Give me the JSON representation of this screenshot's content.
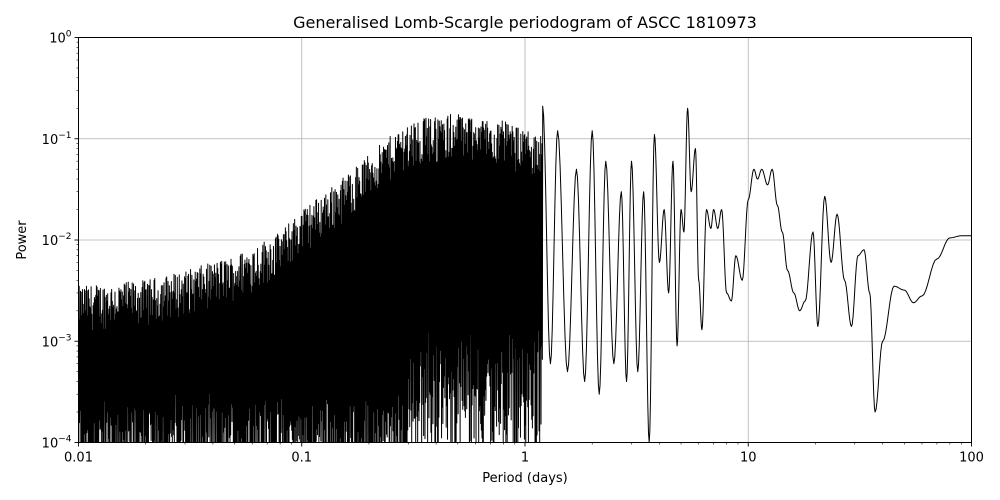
{
  "chart_data": {
    "type": "line",
    "title": "Generalised Lomb-Scargle periodogram of ASCC 1810973",
    "xlabel": "Period (days)",
    "ylabel": "Power",
    "xscale": "log",
    "yscale": "log",
    "xlim": [
      0.01,
      100
    ],
    "ylim": [
      0.0001,
      1
    ],
    "grid": true,
    "x_ticks": [
      {
        "value": 0.01,
        "label": "0.01"
      },
      {
        "value": 0.1,
        "label": "0.1"
      },
      {
        "value": 1,
        "label": "1"
      },
      {
        "value": 10,
        "label": "10"
      },
      {
        "value": 100,
        "label": "100"
      }
    ],
    "y_ticks": [
      {
        "value": 0.0001,
        "base": "10",
        "exp": "−4"
      },
      {
        "value": 0.001,
        "base": "10",
        "exp": "−3"
      },
      {
        "value": 0.01,
        "base": "10",
        "exp": "−2"
      },
      {
        "value": 0.1,
        "base": "10",
        "exp": "−1"
      },
      {
        "value": 1,
        "base": "10",
        "exp": "0"
      }
    ],
    "series": [
      {
        "color": "#000000",
        "envelope": [
          {
            "period": 0.01,
            "power": 0.0035
          },
          {
            "period": 0.02,
            "power": 0.004
          },
          {
            "period": 0.03,
            "power": 0.005
          },
          {
            "period": 0.05,
            "power": 0.007
          },
          {
            "period": 0.08,
            "power": 0.012
          },
          {
            "period": 0.1,
            "power": 0.02
          },
          {
            "period": 0.15,
            "power": 0.04
          },
          {
            "period": 0.2,
            "power": 0.07
          },
          {
            "period": 0.3,
            "power": 0.15
          },
          {
            "period": 0.5,
            "power": 0.18
          },
          {
            "period": 0.8,
            "power": 0.15
          },
          {
            "period": 1.0,
            "power": 0.12
          }
        ],
        "points": [
          [
            1.2,
            0.21
          ],
          [
            1.3,
            0.0006
          ],
          [
            1.4,
            0.12
          ],
          [
            1.55,
            0.0005
          ],
          [
            1.7,
            0.05
          ],
          [
            1.85,
            0.0004
          ],
          [
            2.0,
            0.12
          ],
          [
            2.15,
            0.0003
          ],
          [
            2.3,
            0.06
          ],
          [
            2.5,
            0.0006
          ],
          [
            2.7,
            0.03
          ],
          [
            2.85,
            0.0004
          ],
          [
            3.0,
            0.06
          ],
          [
            3.2,
            0.0005
          ],
          [
            3.4,
            0.03
          ],
          [
            3.6,
            0.0001
          ],
          [
            3.8,
            0.11
          ],
          [
            4.0,
            0.006
          ],
          [
            4.2,
            0.02
          ],
          [
            4.4,
            0.003
          ],
          [
            4.6,
            0.06
          ],
          [
            4.8,
            0.0009
          ],
          [
            5.0,
            0.02
          ],
          [
            5.15,
            0.012
          ],
          [
            5.35,
            0.2
          ],
          [
            5.55,
            0.03
          ],
          [
            5.8,
            0.08
          ],
          [
            6.0,
            0.004
          ],
          [
            6.2,
            0.0013
          ],
          [
            6.5,
            0.02
          ],
          [
            6.8,
            0.013
          ],
          [
            7.0,
            0.02
          ],
          [
            7.3,
            0.013
          ],
          [
            7.6,
            0.02
          ],
          [
            8.0,
            0.003
          ],
          [
            8.4,
            0.0025
          ],
          [
            8.8,
            0.007
          ],
          [
            9.4,
            0.004
          ],
          [
            10.0,
            0.025
          ],
          [
            10.6,
            0.05
          ],
          [
            11.0,
            0.04
          ],
          [
            11.5,
            0.05
          ],
          [
            12.2,
            0.035
          ],
          [
            12.8,
            0.05
          ],
          [
            13.5,
            0.022
          ],
          [
            14.2,
            0.012
          ],
          [
            15.0,
            0.005
          ],
          [
            16.0,
            0.003
          ],
          [
            17.0,
            0.002
          ],
          [
            18.0,
            0.0025
          ],
          [
            19.5,
            0.012
          ],
          [
            20.5,
            0.0014
          ],
          [
            22.0,
            0.027
          ],
          [
            23.5,
            0.006
          ],
          [
            25.0,
            0.018
          ],
          [
            27.0,
            0.004
          ],
          [
            29.0,
            0.0014
          ],
          [
            31.0,
            0.007
          ],
          [
            33.0,
            0.008
          ],
          [
            35.0,
            0.003
          ],
          [
            37.0,
            0.0002
          ],
          [
            40.0,
            0.001
          ],
          [
            45.0,
            0.0035
          ],
          [
            50.0,
            0.0032
          ],
          [
            55.0,
            0.0024
          ],
          [
            60.0,
            0.0028
          ],
          [
            70.0,
            0.0065
          ],
          [
            80.0,
            0.0105
          ],
          [
            90.0,
            0.011
          ],
          [
            100.0,
            0.011
          ]
        ]
      }
    ]
  }
}
